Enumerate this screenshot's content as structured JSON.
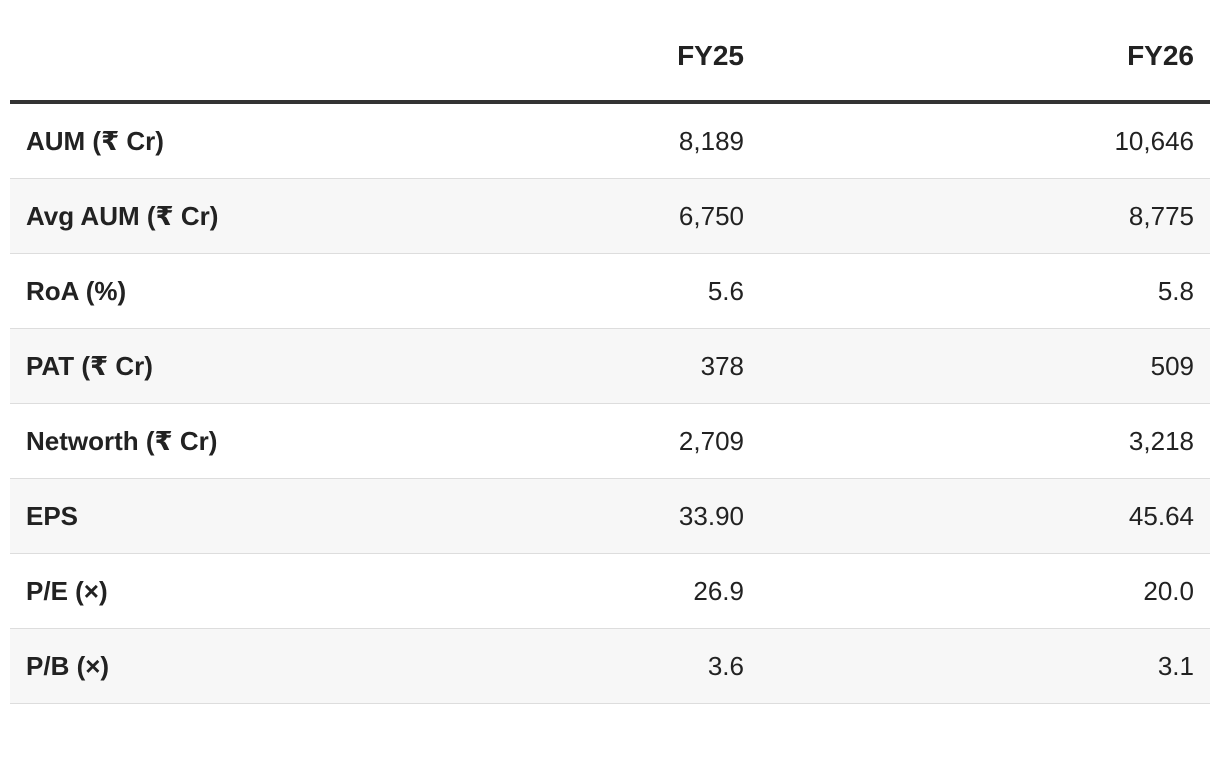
{
  "table": {
    "header": [
      "FY25",
      "FY26"
    ],
    "rows": [
      [
        "AUM (₹ Cr)",
        "8,189",
        "10,646"
      ],
      [
        "Avg AUM (₹ Cr)",
        "6,750",
        "8,775"
      ],
      [
        "RoA (%)",
        "5.6",
        "5.8"
      ],
      [
        "PAT (₹ Cr)",
        "378",
        "509"
      ],
      [
        "Networth (₹ Cr)",
        "2,709",
        "3,218"
      ],
      [
        "EPS",
        "33.90",
        "45.64"
      ],
      [
        "P/E (×)",
        "26.9",
        "20.0"
      ],
      [
        "P/B (×)",
        "3.6",
        "3.1"
      ]
    ]
  }
}
